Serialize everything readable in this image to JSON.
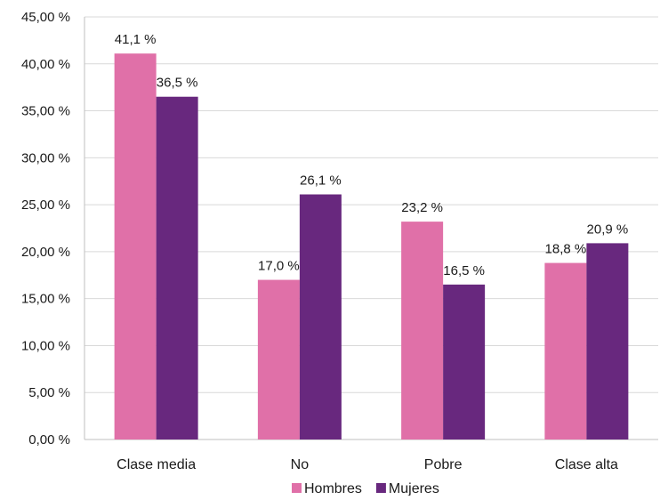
{
  "chart_data": {
    "type": "bar",
    "categories": [
      "Clase media",
      "No",
      "Pobre",
      "Clase alta"
    ],
    "series": [
      {
        "name": "Hombres",
        "color": "#e070a8",
        "values": [
          41.1,
          17.0,
          23.2,
          18.8
        ],
        "labels": [
          "41,1 %",
          "17,0 %",
          "23,2 %",
          "18,8 %"
        ]
      },
      {
        "name": "Mujeres",
        "color": "#68287e",
        "values": [
          36.5,
          26.1,
          16.5,
          20.9
        ],
        "labels": [
          "36,5 %",
          "26,1 %",
          "16,5 %",
          "20,9 %"
        ]
      }
    ],
    "ylim": [
      0,
      45
    ],
    "yticks": [
      0,
      5,
      10,
      15,
      20,
      25,
      30,
      35,
      40,
      45
    ],
    "ytick_labels": [
      "0,00 %",
      "5,00 %",
      "10,00 %",
      "15,00 %",
      "20,00 %",
      "25,00 %",
      "30,00 %",
      "35,00 %",
      "40,00 %",
      "45,00 %"
    ],
    "grid": true,
    "gridline_color": "#d9d9d9",
    "legend_position": "bottom-center",
    "title": "",
    "xlabel": "",
    "ylabel": ""
  }
}
